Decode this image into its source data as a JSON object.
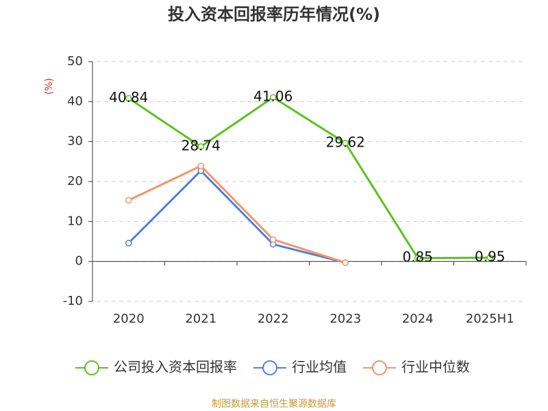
{
  "chart_data": {
    "type": "line",
    "title": "投入资本回报率历年情况(%)",
    "y_label": "(%)",
    "categories": [
      "2020",
      "2021",
      "2022",
      "2023",
      "2024",
      "2025H1"
    ],
    "series": [
      {
        "name": "公司投入资本回报率",
        "color": "#5bc21d",
        "values": [
          40.84,
          28.74,
          41.06,
          29.62,
          0.85,
          0.95
        ],
        "show_labels": true
      },
      {
        "name": "行业均值",
        "color": "#4f7fdb",
        "values": [
          4.6,
          22.7,
          4.3,
          -0.3,
          null,
          null
        ],
        "show_labels": false
      },
      {
        "name": "行业中位数",
        "color": "#f5936a",
        "values": [
          15.3,
          23.9,
          5.5,
          -0.3,
          null,
          null
        ],
        "show_labels": false
      }
    ],
    "ylim": [
      -10,
      50
    ],
    "yticks": [
      -10,
      0,
      10,
      20,
      30,
      40,
      50
    ],
    "grid": true,
    "legend": "bottom",
    "source": "制图数据来自恒生聚源数据库"
  }
}
